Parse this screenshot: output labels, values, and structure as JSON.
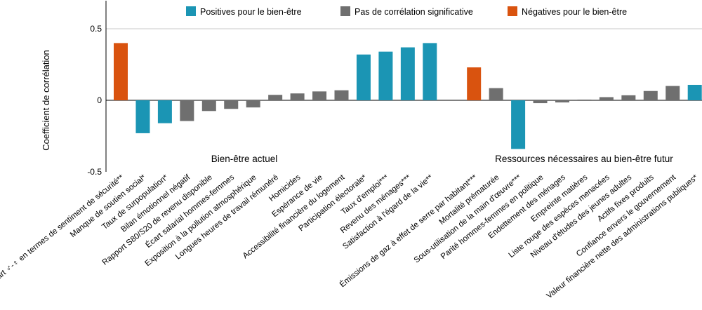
{
  "chart_data": {
    "type": "bar",
    "ylabel": "Coefficient de corrélation",
    "ylim": [
      -0.5,
      0.5
    ],
    "yticks": [
      "0.5",
      "0",
      "-0.5"
    ],
    "grid": "gridlines at 0.5 and 0",
    "legend": {
      "placement": "top",
      "items": [
        {
          "key": "positive",
          "label": "Positives pour le bien-être",
          "color": "#1b95b4"
        },
        {
          "key": "neutral",
          "label": "Pas de corrélation significative",
          "color": "#6f6f6f"
        },
        {
          "key": "negative",
          "label": "Négatives pour le bien-être",
          "color": "#d9530f"
        }
      ]
    },
    "groups": [
      {
        "label": "Bien-être actuel",
        "categories": [
          {
            "label": "Écart ♂-♀ en termes de sentiment de sécurité**",
            "value": 0.4,
            "type": "negative"
          },
          {
            "label": "Manque de soutien social*",
            "value": -0.23,
            "type": "positive"
          },
          {
            "label": "Taux de surpopulation*",
            "value": -0.16,
            "type": "positive"
          },
          {
            "label": "Bilan émotionnel négatif",
            "value": -0.145,
            "type": "neutral"
          },
          {
            "label": "Rapport S80/S20 de revenu disponible",
            "value": -0.075,
            "type": "neutral"
          },
          {
            "label": "Écart salarial hommes-femmes",
            "value": -0.06,
            "type": "neutral"
          },
          {
            "label": "Exposition à la pollution atmosphérique",
            "value": -0.05,
            "type": "neutral"
          },
          {
            "label": "Longues heures de travail rémunéré",
            "value": 0.038,
            "type": "neutral"
          },
          {
            "label": "Homicides",
            "value": 0.048,
            "type": "neutral"
          },
          {
            "label": "Espérance de vie",
            "value": 0.062,
            "type": "neutral"
          },
          {
            "label": "Accessibilité financière du logement",
            "value": 0.07,
            "type": "neutral"
          },
          {
            "label": "Participation électorale*",
            "value": 0.32,
            "type": "positive"
          },
          {
            "label": "Taux d'emploi***",
            "value": 0.34,
            "type": "positive"
          },
          {
            "label": "Revenu des ménages***",
            "value": 0.37,
            "type": "positive"
          },
          {
            "label": "Satisfaction à l'égard de la vie**",
            "value": 0.4,
            "type": "positive"
          }
        ]
      },
      {
        "label": "Ressources nécessaires au bien-être futur",
        "categories": [
          {
            "label": "Émissions de gaz à effet de serre par habitant***",
            "value": 0.23,
            "type": "negative"
          },
          {
            "label": "Mortalité prématurée",
            "value": 0.085,
            "type": "neutral"
          },
          {
            "label": "Sous-utilisation de la main d'œuvre***",
            "value": -0.34,
            "type": "positive"
          },
          {
            "label": "Parité hommes-femmes en politique",
            "value": -0.02,
            "type": "neutral"
          },
          {
            "label": "Endettement des ménages",
            "value": -0.015,
            "type": "neutral"
          },
          {
            "label": "Empreinte matières",
            "value": 0.005,
            "type": "neutral"
          },
          {
            "label": "Liste rouge des espèces menacées",
            "value": 0.022,
            "type": "neutral"
          },
          {
            "label": "Niveau d'études des jeunes adultes",
            "value": 0.035,
            "type": "neutral"
          },
          {
            "label": "Actifs fixes produits",
            "value": 0.065,
            "type": "neutral"
          },
          {
            "label": "Confiance envers le gouvernement",
            "value": 0.1,
            "type": "neutral"
          },
          {
            "label": "Valeur financière nette des administrations publiques*",
            "value": 0.108,
            "type": "positive"
          }
        ]
      }
    ]
  }
}
